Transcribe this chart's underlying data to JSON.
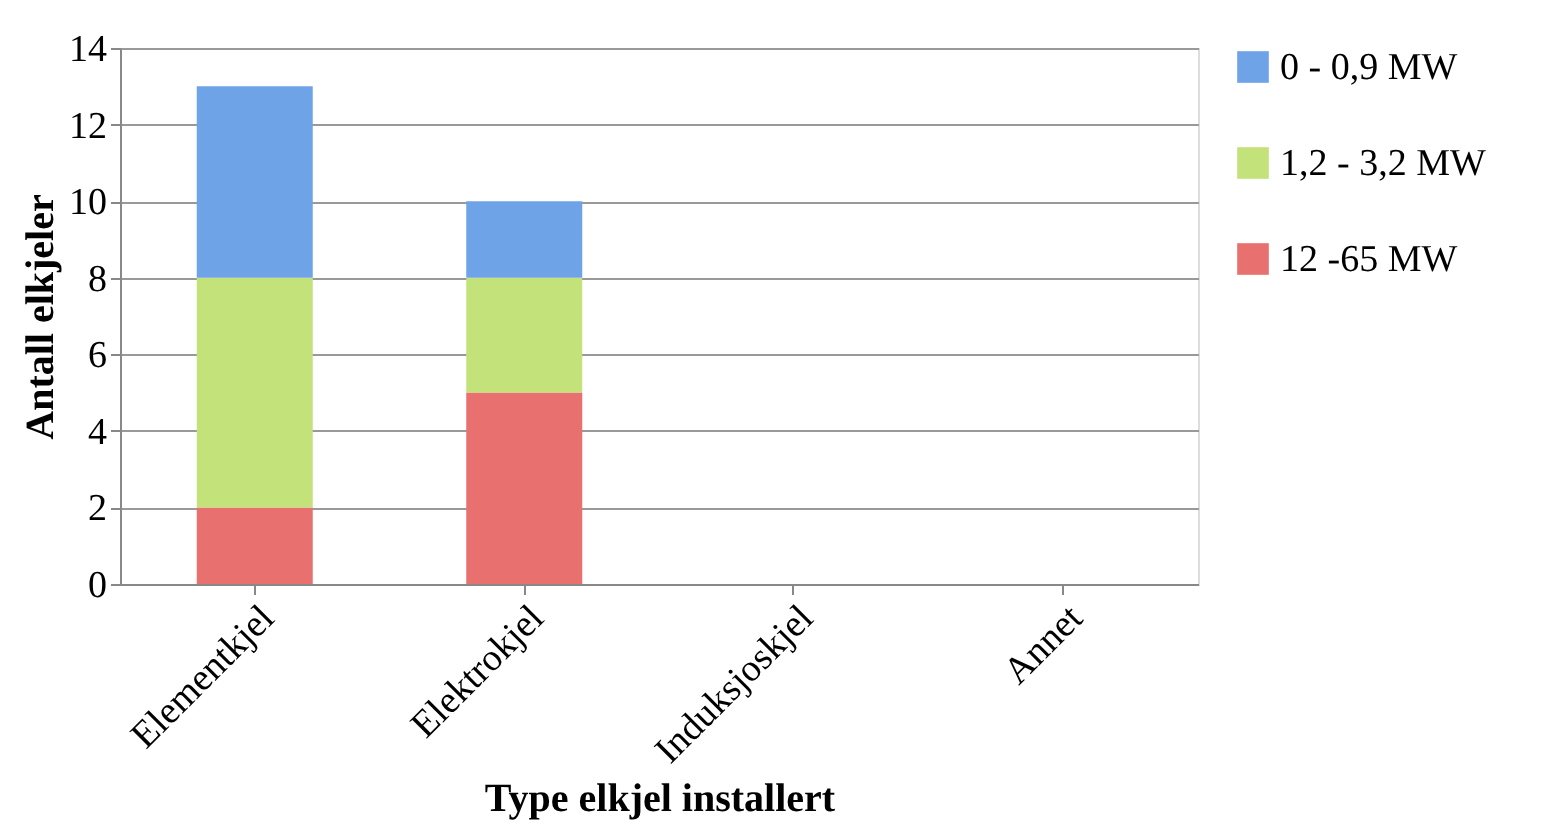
{
  "chart_data": {
    "type": "bar",
    "stacked": true,
    "xlabel": "Type elkjel installert",
    "ylabel": "Antall elkjeler",
    "categories": [
      "Elementkjel",
      "Elektrokjel",
      "Induksjoskjel",
      "Annet"
    ],
    "series": [
      {
        "name": "12 -65 MW",
        "color": "#e8716f",
        "values": [
          2,
          5,
          0,
          0
        ]
      },
      {
        "name": "1,2 - 3,2 MW",
        "color": "#c4e27a",
        "values": [
          6,
          3,
          0,
          0
        ]
      },
      {
        "name": "0 - 0,9 MW",
        "color": "#6fa3e8",
        "values": [
          5,
          2,
          0,
          0
        ]
      }
    ],
    "ylim": [
      0,
      14
    ],
    "yticks": [
      0,
      2,
      4,
      6,
      8,
      10,
      12,
      14
    ],
    "grid": "y",
    "legend": "right"
  }
}
